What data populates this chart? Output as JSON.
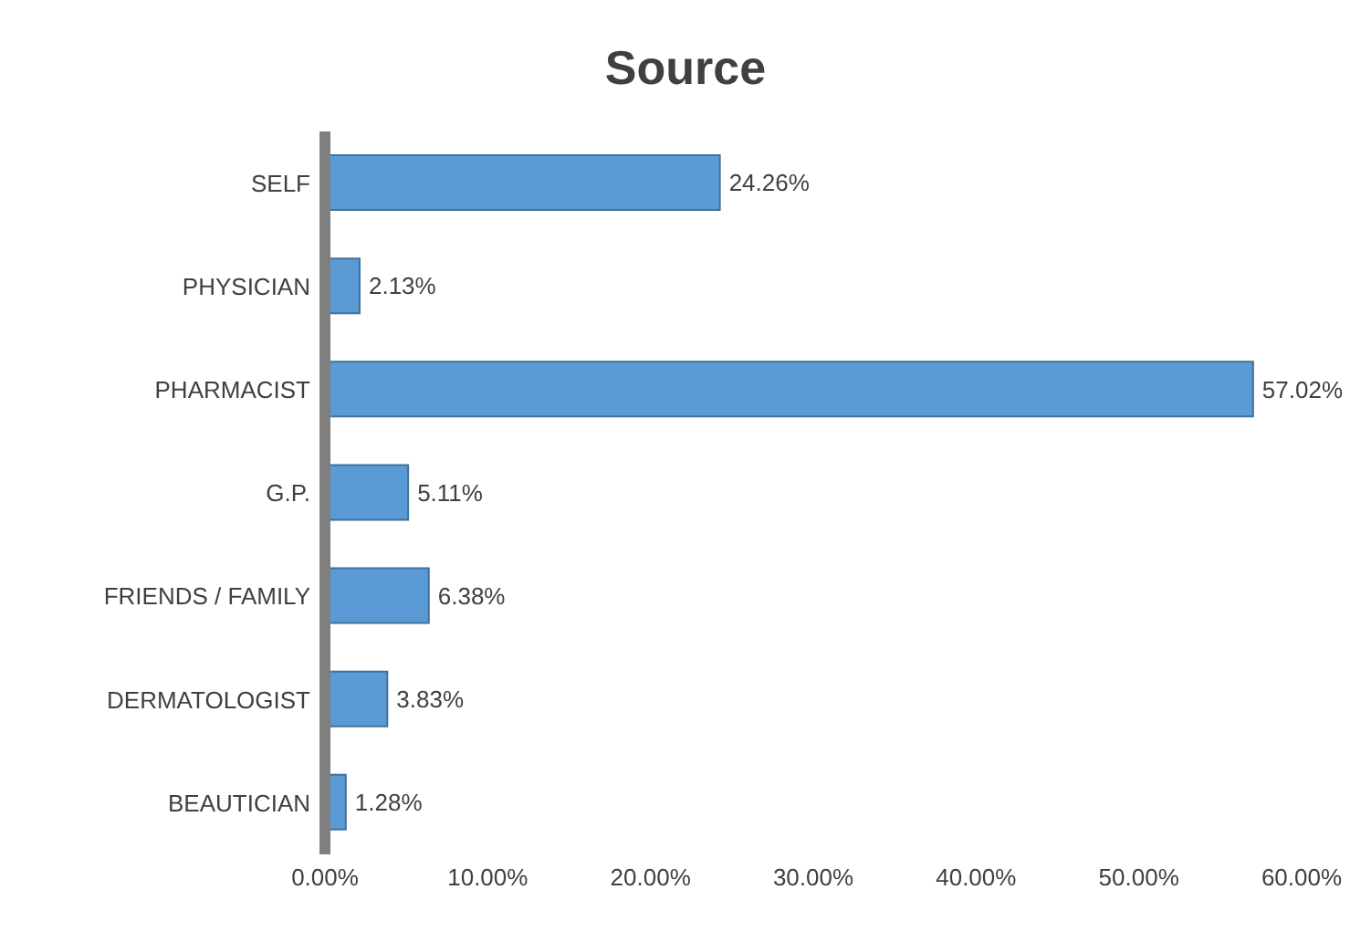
{
  "chart_data": {
    "type": "bar",
    "orientation": "horizontal",
    "title": "Source",
    "categories": [
      "SELF",
      "PHYSICIAN",
      "PHARMACIST",
      "G.P.",
      "FRIENDS / FAMILY",
      "DERMATOLOGIST",
      "BEAUTICIAN"
    ],
    "values": [
      24.26,
      2.13,
      57.02,
      5.11,
      6.38,
      3.83,
      1.28
    ],
    "value_labels": [
      "24.26%",
      "2.13%",
      "57.02%",
      "5.11%",
      "6.38%",
      "3.83%",
      "1.28%"
    ],
    "color": "#5b9bd5",
    "xlim": [
      0,
      60
    ],
    "xticks": [
      {
        "value": 0,
        "label": "0.00%"
      },
      {
        "value": 10,
        "label": "10.00%"
      },
      {
        "value": 20,
        "label": "20.00%"
      },
      {
        "value": 30,
        "label": "30.00%"
      },
      {
        "value": 40,
        "label": "40.00%"
      },
      {
        "value": 50,
        "label": "50.00%"
      },
      {
        "value": 60,
        "label": "60.00%"
      }
    ]
  }
}
